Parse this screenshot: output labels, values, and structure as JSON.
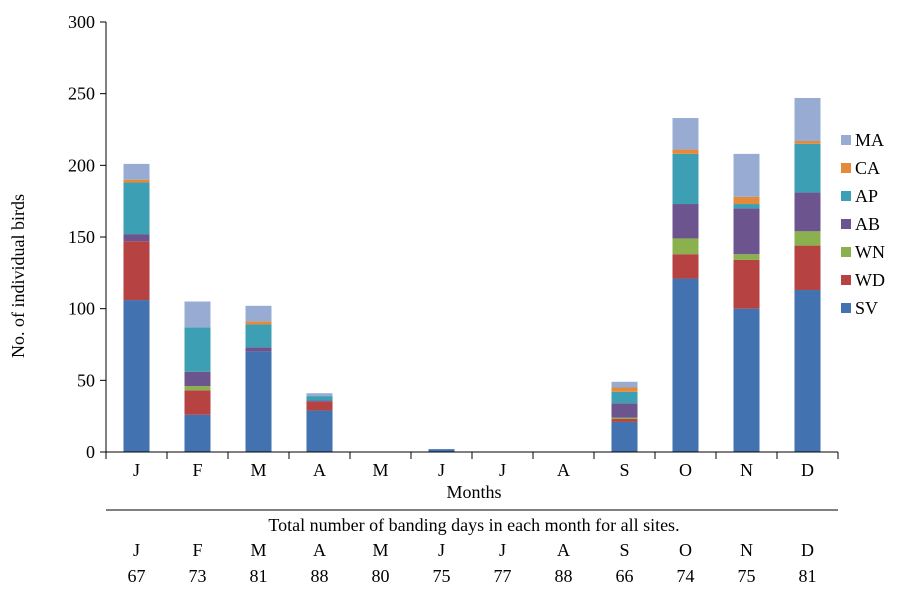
{
  "chart_data": {
    "type": "bar",
    "stacked": true,
    "title": "",
    "xlabel": "Months",
    "ylabel": "No. of individual birds",
    "ylim": [
      0,
      300
    ],
    "yticks": [
      0,
      50,
      100,
      150,
      200,
      250,
      300
    ],
    "grid": false,
    "legend_position": "right",
    "categories": [
      "J",
      "F",
      "M",
      "A",
      "M",
      "J",
      "J",
      "A",
      "S",
      "O",
      "N",
      "D"
    ],
    "series": [
      {
        "name": "SV",
        "color": "#4272b0",
        "values": [
          106,
          26,
          70,
          29,
          0,
          2,
          0,
          0,
          21,
          121,
          100,
          113
        ]
      },
      {
        "name": "WD",
        "color": "#b64241",
        "values": [
          41,
          17,
          0,
          6,
          0,
          0,
          0,
          0,
          2,
          17,
          34,
          31
        ]
      },
      {
        "name": "WN",
        "color": "#8bb04e",
        "values": [
          0,
          3,
          0,
          0,
          0,
          0,
          0,
          0,
          1,
          11,
          4,
          10
        ]
      },
      {
        "name": "AB",
        "color": "#6c548f",
        "values": [
          5,
          10,
          3,
          1,
          0,
          0,
          0,
          0,
          10,
          24,
          32,
          27
        ]
      },
      {
        "name": "AP",
        "color": "#3d9fb3",
        "values": [
          36,
          31,
          16,
          3,
          0,
          0,
          0,
          0,
          8,
          35,
          3,
          34
        ]
      },
      {
        "name": "CA",
        "color": "#e58a3a",
        "values": [
          2,
          0,
          2,
          0,
          0,
          0,
          0,
          0,
          3,
          3,
          5,
          2
        ]
      },
      {
        "name": "MA",
        "color": "#98acd3",
        "values": [
          11,
          18,
          11,
          2,
          0,
          0,
          0,
          0,
          4,
          22,
          30,
          30
        ]
      }
    ]
  },
  "banding_days": {
    "caption": "Total number of banding days in each month for all sites.",
    "months": [
      "J",
      "F",
      "M",
      "A",
      "M",
      "J",
      "J",
      "A",
      "S",
      "O",
      "N",
      "D"
    ],
    "days": [
      "67",
      "73",
      "81",
      "88",
      "80",
      "75",
      "77",
      "88",
      "66",
      "74",
      "75",
      "81"
    ]
  }
}
